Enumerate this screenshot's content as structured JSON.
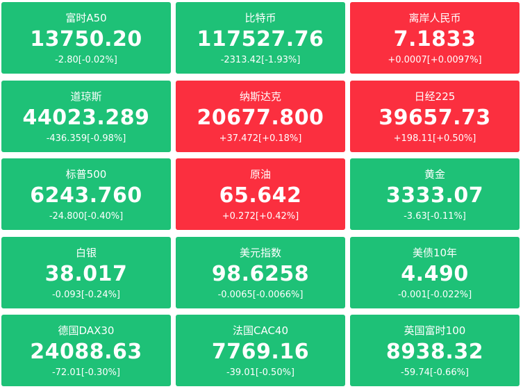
{
  "tiles": [
    {
      "name": "富时A50",
      "price": "13750.20",
      "change": "-2.80[-0.02%]",
      "color": "#1ec177"
    },
    {
      "name": "比特币",
      "price": "117527.76",
      "change": "-2313.42[-1.93%]",
      "color": "#1ec177"
    },
    {
      "name": "离岸人民币",
      "price": "7.1833",
      "change": "+0.0007[+0.0097%]",
      "color": "#fb2f3f"
    },
    {
      "name": "道琼斯",
      "price": "44023.289",
      "change": "-436.359[-0.98%]",
      "color": "#1ec177"
    },
    {
      "name": "纳斯达克",
      "price": "20677.800",
      "change": "+37.472[+0.18%]",
      "color": "#fb2f3f"
    },
    {
      "name": "日经225",
      "price": "39657.73",
      "change": "+198.11[+0.50%]",
      "color": "#fb2f3f"
    },
    {
      "name": "标普500",
      "price": "6243.760",
      "change": "-24.800[-0.40%]",
      "color": "#1ec177"
    },
    {
      "name": "原油",
      "price": "65.642",
      "change": "+0.272[+0.42%]",
      "color": "#fb2f3f"
    },
    {
      "name": "黄金",
      "price": "3333.07",
      "change": "-3.63[-0.11%]",
      "color": "#1ec177"
    },
    {
      "name": "白银",
      "price": "38.017",
      "change": "-0.093[-0.24%]",
      "color": "#1ec177"
    },
    {
      "name": "美元指数",
      "price": "98.6258",
      "change": "-0.0065[-0.0066%]",
      "color": "#1ec177"
    },
    {
      "name": "美债10年",
      "price": "4.490",
      "change": "-0.001[-0.022%]",
      "color": "#1ec177"
    },
    {
      "name": "德国DAX30",
      "price": "24088.63",
      "change": "-72.01[-0.30%]",
      "color": "#1ec177"
    },
    {
      "name": "法国CAC40",
      "price": "7769.16",
      "change": "-39.01[-0.50%]",
      "color": "#1ec177"
    },
    {
      "name": "英国富时100",
      "price": "8938.32",
      "change": "-59.74[-0.66%]",
      "color": "#1ec177"
    }
  ]
}
